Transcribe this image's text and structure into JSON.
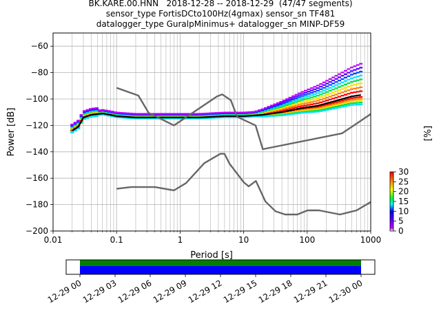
{
  "chart_data": {
    "type": "heatmap",
    "title_lines": [
      "BK.KARE.00.HNN   2018-12-28 -- 2018-12-29  (47/47 segments)",
      "sensor_type FortisDCto100Hz(4gmax) sensor_sn TF481",
      "datalogger_type GuralpMinimus+ datalogger_sn MINP-DF59"
    ],
    "xlabel": "Period [s]",
    "ylabel": "Power [dB]",
    "x_scale": "log",
    "xlim": [
      0.01,
      1000
    ],
    "ylim": [
      -200,
      -50
    ],
    "x_ticks": [
      {
        "value": 0.01,
        "label": "0.01"
      },
      {
        "value": 0.1,
        "label": "0.1"
      },
      {
        "value": 1,
        "label": "1"
      },
      {
        "value": 10,
        "label": "10"
      },
      {
        "value": 100,
        "label": "100"
      },
      {
        "value": 1000,
        "label": "1000"
      }
    ],
    "y_ticks": [
      -60,
      -80,
      -100,
      -120,
      -140,
      -160,
      -180,
      -200
    ],
    "grid": true,
    "series": [
      {
        "role": "mode",
        "color": "#000000",
        "points": [
          [
            0.02,
            -124
          ],
          [
            0.025,
            -121
          ],
          [
            0.03,
            -114
          ],
          [
            0.04,
            -112
          ],
          [
            0.06,
            -111
          ],
          [
            0.08,
            -112
          ],
          [
            0.1,
            -113
          ],
          [
            0.2,
            -114
          ],
          [
            0.5,
            -114
          ],
          [
            1,
            -114
          ],
          [
            2,
            -114
          ],
          [
            5,
            -113
          ],
          [
            10,
            -113
          ],
          [
            20,
            -112
          ],
          [
            40,
            -110
          ],
          [
            80,
            -107
          ],
          [
            150,
            -105
          ],
          [
            300,
            -101
          ],
          [
            500,
            -98
          ],
          [
            700,
            -97
          ]
        ]
      },
      {
        "role": "noise-model-upper",
        "color": "#666666",
        "points": [
          [
            0.1,
            -91.5
          ],
          [
            0.22,
            -97.4
          ],
          [
            0.32,
            -110.5
          ],
          [
            0.8,
            -120
          ],
          [
            3.8,
            -98
          ],
          [
            4.6,
            -96.5
          ],
          [
            6.3,
            -101
          ],
          [
            7.9,
            -113.5
          ],
          [
            15.4,
            -120
          ],
          [
            20,
            -138
          ],
          [
            354.8,
            -126
          ],
          [
            1000,
            -111.4
          ]
        ]
      },
      {
        "role": "noise-model-lower",
        "color": "#666666",
        "points": [
          [
            0.1,
            -168
          ],
          [
            0.17,
            -166.7
          ],
          [
            0.4,
            -166.7
          ],
          [
            0.8,
            -169.2
          ],
          [
            1.24,
            -163.7
          ],
          [
            2.4,
            -148.6
          ],
          [
            4.3,
            -141.5
          ],
          [
            5,
            -141.5
          ],
          [
            6,
            -149
          ],
          [
            10,
            -163
          ],
          [
            12,
            -166.2
          ],
          [
            15.6,
            -162.1
          ],
          [
            21.9,
            -177.5
          ],
          [
            31.6,
            -185
          ],
          [
            45,
            -187.5
          ],
          [
            70,
            -187.5
          ],
          [
            101,
            -184.4
          ],
          [
            154,
            -184.4
          ],
          [
            328,
            -187.5
          ],
          [
            600,
            -184.4
          ],
          [
            1000,
            -178
          ]
        ]
      }
    ],
    "colorbar": {
      "label": "[%]",
      "min": 0,
      "max": 30,
      "ticks": [
        0,
        5,
        10,
        15,
        20,
        25,
        30
      ]
    },
    "timeline": {
      "tick_labels": [
        "12-29 00",
        "12-29 03",
        "12-29 06",
        "12-29 09",
        "12-29 12",
        "12-29 15",
        "12-29 18",
        "12-29 21",
        "12-30 00"
      ],
      "data_color": "#008000",
      "gap_color": "#0000ff"
    }
  }
}
